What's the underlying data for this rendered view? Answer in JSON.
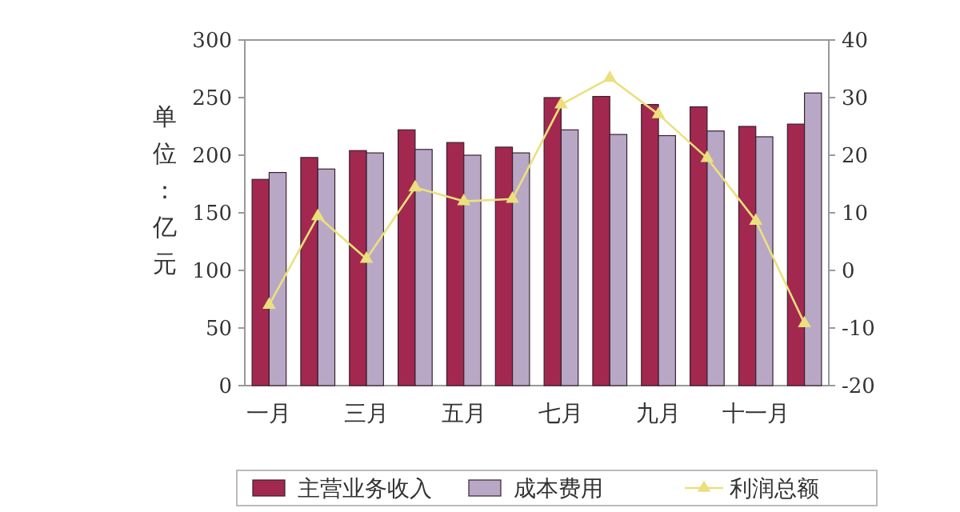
{
  "chart_data": {
    "type": "bar",
    "ylabel": "单位：亿元",
    "categories": [
      "一月",
      null,
      "三月",
      null,
      "五月",
      null,
      "七月",
      null,
      "九月",
      null,
      "十一月",
      null
    ],
    "series": [
      {
        "name": "主营业务收入",
        "color": "#a3284f",
        "values": [
          179,
          198,
          204,
          222,
          211,
          207,
          250,
          251,
          244,
          242,
          225,
          227
        ]
      },
      {
        "name": "成本费用",
        "color": "#b8a8c6",
        "values": [
          185,
          188,
          202,
          205,
          200,
          202,
          222,
          218,
          217,
          221,
          216,
          254
        ]
      },
      {
        "name": "利润总额",
        "type": "line",
        "axis": "y2",
        "color": "#ece07c",
        "marker": "triangle",
        "values": [
          -6,
          9.4,
          2,
          14.4,
          12,
          12.4,
          28.8,
          33.4,
          27.1,
          19.5,
          8.6,
          -9.2
        ]
      }
    ],
    "ylim": [
      0,
      300
    ],
    "yticks": [
      0,
      50,
      100,
      150,
      200,
      250,
      300
    ],
    "y2lim": [
      -20,
      40
    ],
    "y2ticks": [
      -20,
      -10,
      0,
      10,
      20,
      30,
      40
    ],
    "grid": false,
    "legend": "bottom"
  }
}
